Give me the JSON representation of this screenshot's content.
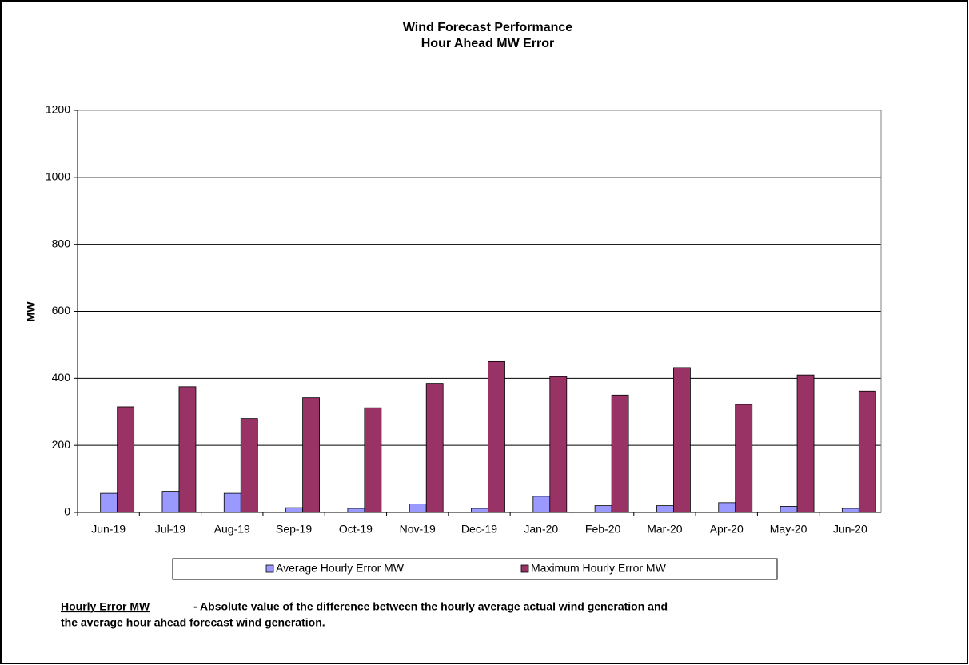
{
  "chart_data": {
    "type": "bar",
    "title": [
      "Wind Forecast Performance",
      "Hour Ahead MW Error"
    ],
    "y_label": "MW",
    "categories": [
      "Jun-19",
      "Jul-19",
      "Aug-19",
      "Sep-19",
      "Oct-19",
      "Nov-19",
      "Dec-19",
      "Jan-20",
      "Feb-20",
      "Mar-20",
      "Apr-20",
      "May-20",
      "Jun-20"
    ],
    "series": [
      {
        "name": "Average Hourly Error MW",
        "color": "#9999ff",
        "values": [
          57,
          63,
          57,
          14,
          12,
          25,
          12,
          48,
          20,
          20,
          29,
          18,
          12
        ]
      },
      {
        "name": "Maximum Hourly Error MW",
        "color": "#993366",
        "values": [
          315,
          375,
          280,
          342,
          312,
          385,
          450,
          405,
          350,
          432,
          322,
          410,
          362
        ]
      }
    ],
    "ylim": [
      0,
      1200
    ],
    "yticks": [
      0,
      200,
      400,
      600,
      800,
      1000,
      1200
    ],
    "grid": true,
    "legend": "bottom"
  },
  "footnote": {
    "term": "Hourly Error MW",
    "lines": [
      "- Absolute value of the difference between the hourly average actual wind generation and",
      "the average hour ahead forecast wind generation."
    ]
  }
}
